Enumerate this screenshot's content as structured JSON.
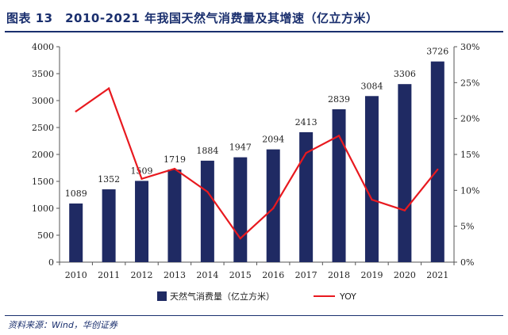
{
  "header": {
    "title": "图表 13　2010-2021 年我国天然气消费量及其增速（亿立方米）"
  },
  "footer": {
    "source": "资料来源：Wind，华创证券"
  },
  "colors": {
    "bar": "#1f2a63",
    "line": "#e8191f",
    "axis": "#555555",
    "title": "#1a2f6e"
  },
  "chart_data": {
    "type": "bar",
    "title": "2010-2021 年我国天然气消费量及其增速（亿立方米）",
    "categories": [
      "2010",
      "2011",
      "2012",
      "2013",
      "2014",
      "2015",
      "2016",
      "2017",
      "2018",
      "2019",
      "2020",
      "2021"
    ],
    "series": [
      {
        "name": "天然气消费量（亿立方米）",
        "kind": "bar",
        "axis": "left",
        "values": [
          1089,
          1352,
          1509,
          1719,
          1884,
          1947,
          2094,
          2413,
          2839,
          3084,
          3306,
          3726
        ],
        "labels": [
          "1089",
          "1352",
          "1509",
          "1719",
          "1884",
          "1947",
          "2094",
          "2413",
          "2839",
          "3084",
          "3306",
          "3726"
        ]
      },
      {
        "name": "YOY",
        "kind": "line",
        "axis": "right",
        "values": [
          21.0,
          24.2,
          11.6,
          13.0,
          9.8,
          3.3,
          7.5,
          15.2,
          17.6,
          8.7,
          7.2,
          12.9
        ]
      }
    ],
    "y_left": {
      "min": 0,
      "max": 4000,
      "ticks": [
        "0",
        "500",
        "1000",
        "1500",
        "2000",
        "2500",
        "3000",
        "3500",
        "4000"
      ]
    },
    "y_right": {
      "min": 0,
      "max": 30,
      "ticks": [
        "0%",
        "5%",
        "10%",
        "15%",
        "20%",
        "25%",
        "30%"
      ]
    },
    "legend": {
      "placement": "bottom-center",
      "items": [
        "天然气消费量（亿立方米）",
        "YOY"
      ]
    },
    "grid": false
  }
}
